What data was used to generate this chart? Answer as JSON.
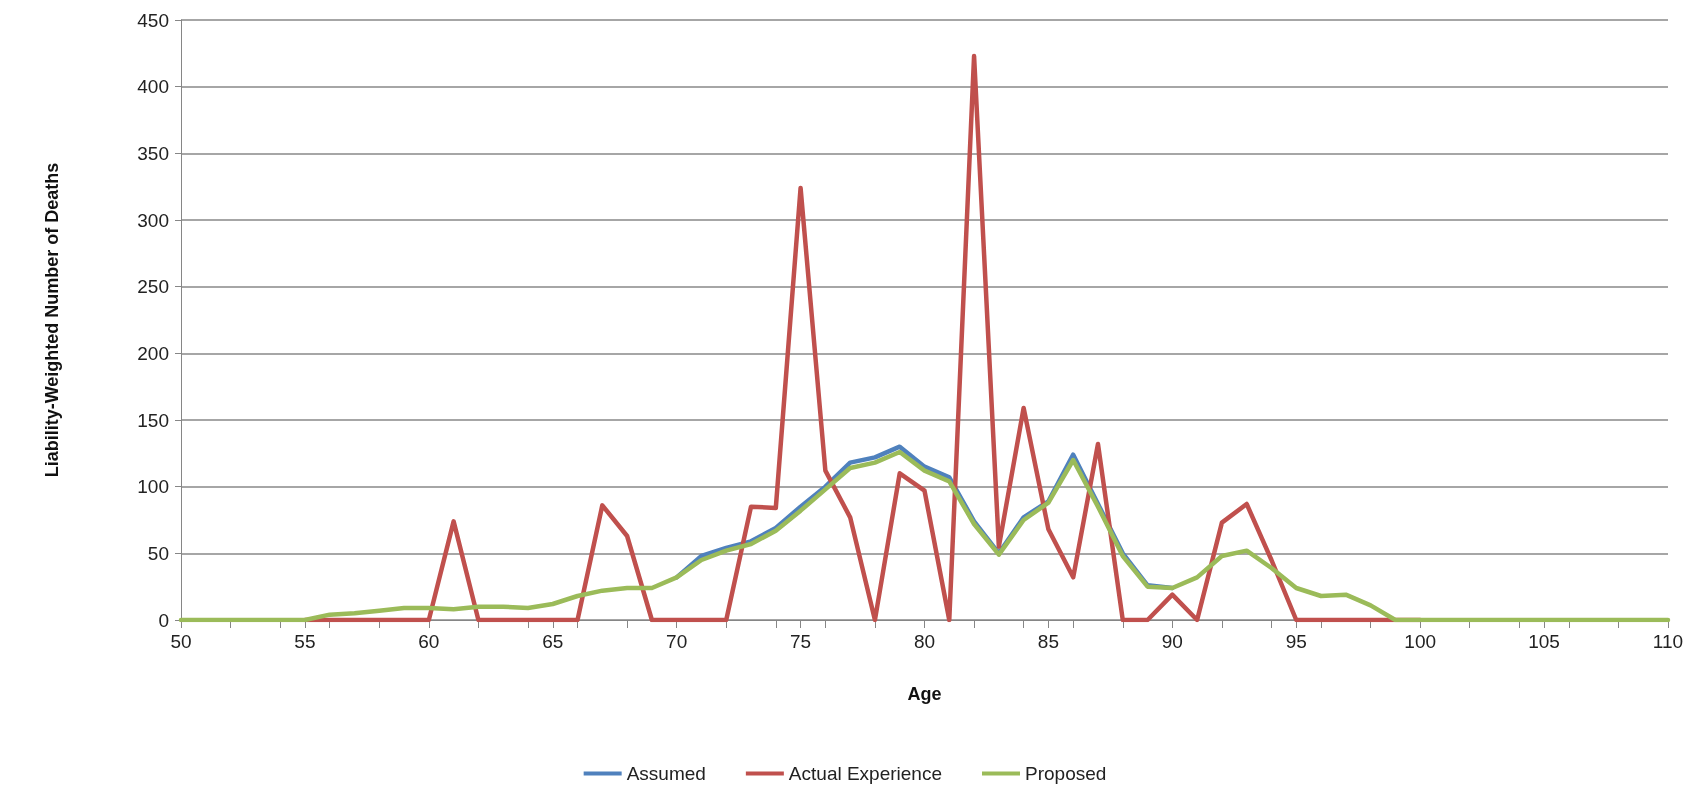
{
  "chart_data": {
    "type": "line",
    "xlabel": "Age",
    "ylabel": "Liability-Weighted Number of Deaths",
    "x": [
      50,
      51,
      52,
      53,
      54,
      55,
      56,
      57,
      58,
      59,
      60,
      61,
      62,
      63,
      64,
      65,
      66,
      67,
      68,
      69,
      70,
      71,
      72,
      73,
      74,
      75,
      76,
      77,
      78,
      79,
      80,
      81,
      82,
      83,
      84,
      85,
      86,
      87,
      88,
      89,
      90,
      91,
      92,
      93,
      94,
      95,
      96,
      97,
      98,
      99,
      100,
      101,
      102,
      103,
      104,
      105,
      106,
      107,
      108,
      109,
      110
    ],
    "series": [
      {
        "name": "Assumed",
        "color": "#4f81bd",
        "values": [
          null,
          null,
          null,
          null,
          null,
          null,
          null,
          null,
          null,
          null,
          null,
          null,
          null,
          null,
          null,
          null,
          null,
          null,
          null,
          null,
          32,
          48,
          54,
          59,
          69,
          85,
          100,
          118,
          122,
          130,
          115,
          107,
          74,
          50,
          77,
          89,
          124,
          87,
          50,
          26,
          24,
          null,
          null,
          null,
          null,
          null,
          null,
          null,
          null,
          null,
          null,
          null,
          null,
          null,
          null,
          null,
          null,
          null,
          null,
          null,
          null
        ]
      },
      {
        "name": "Actual Experience",
        "color": "#c0504d",
        "values": [
          null,
          null,
          null,
          null,
          null,
          0,
          0,
          0,
          0,
          0,
          0,
          74,
          0,
          0,
          0,
          0,
          0,
          86,
          63,
          0,
          0,
          0,
          0,
          85,
          84,
          324,
          112,
          77,
          0,
          110,
          97,
          0,
          423,
          55,
          159,
          68,
          32,
          132,
          0,
          0,
          19,
          0,
          73,
          87,
          45,
          0,
          0,
          0,
          0,
          0,
          0,
          null,
          null,
          null,
          null,
          null,
          null,
          null,
          null,
          null,
          null
        ]
      },
      {
        "name": "Proposed",
        "color": "#9bbb59",
        "values": [
          0,
          0,
          0,
          0,
          0,
          0,
          4,
          5,
          7,
          9,
          9,
          8,
          10,
          10,
          9,
          12,
          18,
          22,
          24,
          24,
          32,
          45,
          52,
          57,
          67,
          82,
          98,
          114,
          118,
          126,
          112,
          104,
          72,
          49,
          75,
          88,
          120,
          85,
          48,
          25,
          24,
          32,
          48,
          52,
          39,
          24,
          18,
          19,
          11,
          0,
          0,
          0,
          0,
          0,
          0,
          0,
          0,
          0,
          0,
          0,
          0
        ]
      }
    ],
    "xlim": [
      50,
      110
    ],
    "xticks": [
      50,
      55,
      60,
      65,
      70,
      75,
      80,
      85,
      90,
      95,
      100,
      105,
      110
    ],
    "ylim": [
      0,
      450
    ],
    "yticks": [
      0,
      50,
      100,
      150,
      200,
      250,
      300,
      350,
      400,
      450
    ],
    "grid": "y",
    "legend": "bottom",
    "marker": "none",
    "line_style": "solid"
  }
}
